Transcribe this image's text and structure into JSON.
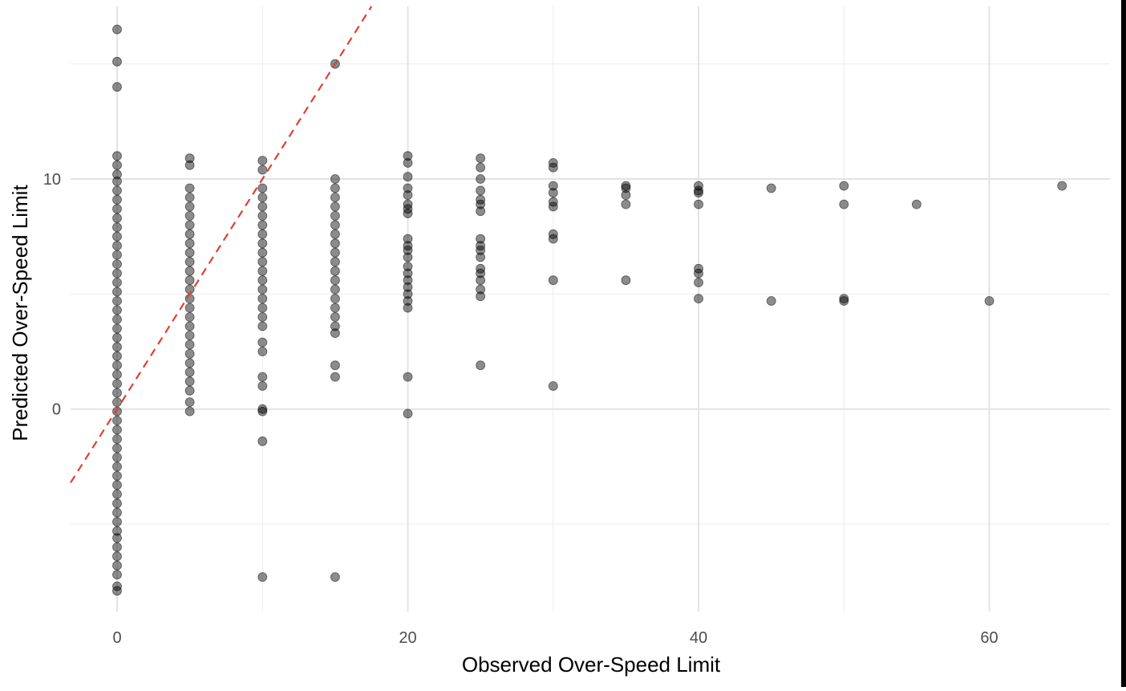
{
  "chart_data": {
    "type": "scatter",
    "title": "",
    "xlabel": "Observed Over-Speed Limit",
    "ylabel": "Predicted Over-Speed Limit",
    "xlim": [
      -3.2,
      68.3
    ],
    "ylim": [
      -8.8,
      17.5
    ],
    "x_ticks": [
      0,
      20,
      40,
      60
    ],
    "y_ticks": [
      0,
      10
    ],
    "x_minor_ticks": [
      10,
      30,
      50
    ],
    "y_minor_ticks": [
      -5,
      5,
      15
    ],
    "grid": true,
    "point_color": "#000000",
    "point_opacity": 0.45,
    "reference_line": {
      "slope": 1,
      "intercept": 0,
      "color": "#e0402f",
      "style": "dashed"
    },
    "series": [
      {
        "values": [
          [
            0,
            16.5
          ],
          [
            0,
            15.1
          ],
          [
            0,
            14.0
          ],
          [
            0,
            11.0
          ],
          [
            0,
            10.6
          ],
          [
            0,
            10.2
          ],
          [
            0,
            9.9
          ],
          [
            0,
            9.5
          ],
          [
            0,
            9.1
          ],
          [
            0,
            8.7
          ],
          [
            0,
            8.3
          ],
          [
            0,
            7.9
          ],
          [
            0,
            7.5
          ],
          [
            0,
            7.1
          ],
          [
            0,
            6.7
          ],
          [
            0,
            6.3
          ],
          [
            0,
            5.9
          ],
          [
            0,
            5.5
          ],
          [
            0,
            5.1
          ],
          [
            0,
            4.7
          ],
          [
            0,
            4.3
          ],
          [
            0,
            3.9
          ],
          [
            0,
            3.5
          ],
          [
            0,
            3.1
          ],
          [
            0,
            2.7
          ],
          [
            0,
            2.3
          ],
          [
            0,
            1.9
          ],
          [
            0,
            1.5
          ],
          [
            0,
            1.1
          ],
          [
            0,
            0.7
          ],
          [
            0,
            0.3
          ],
          [
            0,
            -0.1
          ],
          [
            0,
            -0.5
          ],
          [
            0,
            -0.9
          ],
          [
            0,
            -1.3
          ],
          [
            0,
            -1.7
          ],
          [
            0,
            -2.1
          ],
          [
            0,
            -2.5
          ],
          [
            0,
            -2.9
          ],
          [
            0,
            -3.3
          ],
          [
            0,
            -3.7
          ],
          [
            0,
            -4.1
          ],
          [
            0,
            -4.5
          ],
          [
            0,
            -4.9
          ],
          [
            0,
            -5.3
          ],
          [
            0,
            -5.6
          ],
          [
            0,
            -6.0
          ],
          [
            0,
            -6.4
          ],
          [
            0,
            -6.8
          ],
          [
            0,
            -7.2
          ],
          [
            0,
            -7.7
          ],
          [
            0,
            -7.9
          ],
          [
            5,
            10.9
          ],
          [
            5,
            10.6
          ],
          [
            5,
            9.6
          ],
          [
            5,
            9.2
          ],
          [
            5,
            8.8
          ],
          [
            5,
            8.4
          ],
          [
            5,
            8.0
          ],
          [
            5,
            7.6
          ],
          [
            5,
            7.2
          ],
          [
            5,
            6.8
          ],
          [
            5,
            6.4
          ],
          [
            5,
            6.0
          ],
          [
            5,
            5.6
          ],
          [
            5,
            5.2
          ],
          [
            5,
            4.8
          ],
          [
            5,
            4.4
          ],
          [
            5,
            4.0
          ],
          [
            5,
            3.6
          ],
          [
            5,
            3.2
          ],
          [
            5,
            2.8
          ],
          [
            5,
            2.4
          ],
          [
            5,
            2.0
          ],
          [
            5,
            1.6
          ],
          [
            5,
            1.2
          ],
          [
            5,
            0.8
          ],
          [
            5,
            0.3
          ],
          [
            5,
            -0.1
          ],
          [
            10,
            10.8
          ],
          [
            10,
            10.4
          ],
          [
            10,
            9.6
          ],
          [
            10,
            9.2
          ],
          [
            10,
            8.8
          ],
          [
            10,
            8.4
          ],
          [
            10,
            8.0
          ],
          [
            10,
            7.6
          ],
          [
            10,
            7.2
          ],
          [
            10,
            6.8
          ],
          [
            10,
            6.4
          ],
          [
            10,
            6.0
          ],
          [
            10,
            5.6
          ],
          [
            10,
            5.2
          ],
          [
            10,
            4.8
          ],
          [
            10,
            4.4
          ],
          [
            10,
            4.0
          ],
          [
            10,
            3.6
          ],
          [
            10,
            2.9
          ],
          [
            10,
            2.5
          ],
          [
            10,
            1.4
          ],
          [
            10,
            1.0
          ],
          [
            10,
            0.0
          ],
          [
            10,
            -0.1
          ],
          [
            10,
            -1.4
          ],
          [
            10,
            -7.3
          ],
          [
            15,
            15.0
          ],
          [
            15,
            10.0
          ],
          [
            15,
            9.6
          ],
          [
            15,
            9.2
          ],
          [
            15,
            8.8
          ],
          [
            15,
            8.4
          ],
          [
            15,
            8.0
          ],
          [
            15,
            7.6
          ],
          [
            15,
            7.2
          ],
          [
            15,
            6.8
          ],
          [
            15,
            6.4
          ],
          [
            15,
            6.0
          ],
          [
            15,
            5.6
          ],
          [
            15,
            5.2
          ],
          [
            15,
            4.8
          ],
          [
            15,
            4.4
          ],
          [
            15,
            4.0
          ],
          [
            15,
            3.6
          ],
          [
            15,
            3.3
          ],
          [
            15,
            1.9
          ],
          [
            15,
            1.4
          ],
          [
            15,
            -7.3
          ],
          [
            20,
            11.0
          ],
          [
            20,
            10.7
          ],
          [
            20,
            10.1
          ],
          [
            20,
            9.6
          ],
          [
            20,
            9.3
          ],
          [
            20,
            8.9
          ],
          [
            20,
            8.7
          ],
          [
            20,
            8.5
          ],
          [
            20,
            7.4
          ],
          [
            20,
            7.1
          ],
          [
            20,
            6.9
          ],
          [
            20,
            6.6
          ],
          [
            20,
            6.2
          ],
          [
            20,
            5.9
          ],
          [
            20,
            5.6
          ],
          [
            20,
            5.3
          ],
          [
            20,
            5.0
          ],
          [
            20,
            4.7
          ],
          [
            20,
            4.4
          ],
          [
            20,
            1.4
          ],
          [
            20,
            -0.2
          ],
          [
            25,
            10.9
          ],
          [
            25,
            10.5
          ],
          [
            25,
            10.0
          ],
          [
            25,
            9.5
          ],
          [
            25,
            9.1
          ],
          [
            25,
            8.9
          ],
          [
            25,
            8.6
          ],
          [
            25,
            7.4
          ],
          [
            25,
            7.1
          ],
          [
            25,
            6.9
          ],
          [
            25,
            6.6
          ],
          [
            25,
            6.1
          ],
          [
            25,
            5.9
          ],
          [
            25,
            5.6
          ],
          [
            25,
            5.2
          ],
          [
            25,
            4.9
          ],
          [
            25,
            1.9
          ],
          [
            30,
            10.7
          ],
          [
            30,
            10.5
          ],
          [
            30,
            9.7
          ],
          [
            30,
            9.4
          ],
          [
            30,
            9.0
          ],
          [
            30,
            8.8
          ],
          [
            30,
            7.6
          ],
          [
            30,
            7.4
          ],
          [
            30,
            5.6
          ],
          [
            30,
            1.0
          ],
          [
            35,
            9.7
          ],
          [
            35,
            9.6
          ],
          [
            35,
            9.3
          ],
          [
            35,
            8.9
          ],
          [
            35,
            5.6
          ],
          [
            40,
            9.7
          ],
          [
            40,
            9.5
          ],
          [
            40,
            9.4
          ],
          [
            40,
            8.9
          ],
          [
            40,
            6.1
          ],
          [
            40,
            5.9
          ],
          [
            40,
            5.5
          ],
          [
            40,
            4.8
          ],
          [
            45,
            9.6
          ],
          [
            45,
            4.7
          ],
          [
            50,
            9.7
          ],
          [
            50,
            8.9
          ],
          [
            50,
            4.8
          ],
          [
            50,
            4.7
          ],
          [
            55,
            8.9
          ],
          [
            60,
            4.7
          ],
          [
            65,
            9.7
          ]
        ]
      }
    ]
  }
}
